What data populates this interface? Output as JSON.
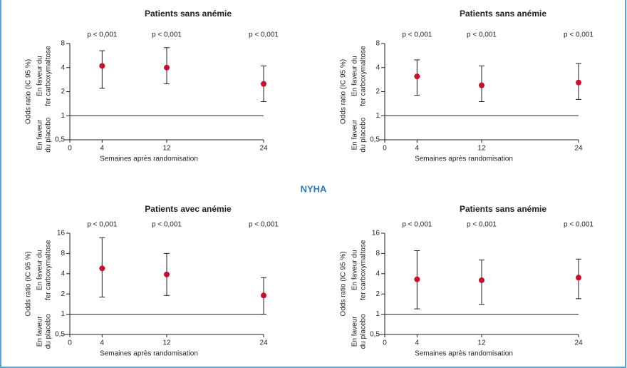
{
  "section_title": "NYHA",
  "chart_data": [
    {
      "type": "errorbar",
      "title": "Patients sans anémie",
      "x_label": "Semaines après randomisation",
      "y_label": "Odds ratio (IC 95 %)",
      "favor_top": [
        "En faveur du",
        "fer carboxymaltose"
      ],
      "favor_bottom": [
        "En faveur",
        "du placebo"
      ],
      "x": [
        4,
        12,
        24
      ],
      "values": [
        4.2,
        4.0,
        2.5
      ],
      "lower": [
        2.2,
        2.5,
        1.5
      ],
      "upper": [
        6.5,
        7.1,
        4.2
      ],
      "annotations": [
        "p < 0,001",
        "p < 0,001",
        "p < 0,001"
      ],
      "color": "#c8102e",
      "hline": 1,
      "xlim": [
        0,
        24
      ],
      "xticks": [
        0,
        4,
        12,
        24
      ],
      "ylim": [
        0.5,
        8
      ],
      "log_y": true,
      "yticks": [
        {
          "value": 0.5,
          "label": "0,5"
        },
        1,
        2,
        4,
        8
      ]
    },
    {
      "type": "errorbar",
      "title": "Patients sans anémie",
      "x_label": "Semaines après randomisation",
      "y_label": "Odds ratio (IC 95 %)",
      "favor_top": [
        "En faveur du",
        "fer carboxymaltose"
      ],
      "favor_bottom": [
        "En faveur",
        "du placebo"
      ],
      "x": [
        4,
        12,
        24
      ],
      "values": [
        3.1,
        2.4,
        2.6
      ],
      "lower": [
        1.8,
        1.5,
        1.6
      ],
      "upper": [
        5.0,
        4.2,
        4.5
      ],
      "annotations": [
        "p < 0,001",
        "p < 0,001",
        "p < 0,001"
      ],
      "color": "#c8102e",
      "hline": 1,
      "xlim": [
        0,
        24
      ],
      "xticks": [
        0,
        4,
        12,
        24
      ],
      "ylim": [
        0.5,
        8
      ],
      "log_y": true,
      "yticks": [
        {
          "value": 0.5,
          "label": "0,5"
        },
        1,
        2,
        4,
        8
      ]
    },
    {
      "type": "errorbar",
      "title": "Patients avec anémie",
      "x_label": "Semaines après randomisation",
      "y_label": "Odds ratio (IC 95 %)",
      "favor_top": [
        "En faveur du",
        "fer carboxymaltose"
      ],
      "favor_bottom": [
        "En faveur",
        "du placebo"
      ],
      "x": [
        4,
        12,
        24
      ],
      "values": [
        4.8,
        3.9,
        1.9
      ],
      "lower": [
        1.8,
        1.9,
        1.0
      ],
      "upper": [
        13.7,
        8.0,
        3.5
      ],
      "annotations": [
        "p < 0,001",
        "p < 0,001",
        "p < 0,001"
      ],
      "color": "#c8102e",
      "hline": 1,
      "xlim": [
        0,
        24
      ],
      "xticks": [
        0,
        4,
        12,
        24
      ],
      "ylim": [
        0.5,
        16
      ],
      "log_y": true,
      "yticks": [
        {
          "value": 0.5,
          "label": "0,5"
        },
        1,
        2,
        4,
        8,
        16
      ]
    },
    {
      "type": "errorbar",
      "title": "Patients sans anémie",
      "x_label": "Semaines après randomisation",
      "y_label": "Odds ratio (IC 95 %)",
      "favor_top": [
        "En faveur du",
        "fer carboxymaltose"
      ],
      "favor_bottom": [
        "En faveur",
        "du placebo"
      ],
      "x": [
        4,
        12,
        24
      ],
      "values": [
        3.3,
        3.2,
        3.5
      ],
      "lower": [
        1.2,
        1.4,
        1.7
      ],
      "upper": [
        8.8,
        6.4,
        6.6
      ],
      "annotations": [
        "p < 0,001",
        "p < 0,001",
        "p < 0,001"
      ],
      "color": "#c8102e",
      "hline": 1,
      "xlim": [
        0,
        24
      ],
      "xticks": [
        0,
        4,
        12,
        24
      ],
      "ylim": [
        0.5,
        16
      ],
      "log_y": true,
      "yticks": [
        {
          "value": 0.5,
          "label": "0,5"
        },
        1,
        2,
        4,
        8,
        16
      ]
    }
  ]
}
